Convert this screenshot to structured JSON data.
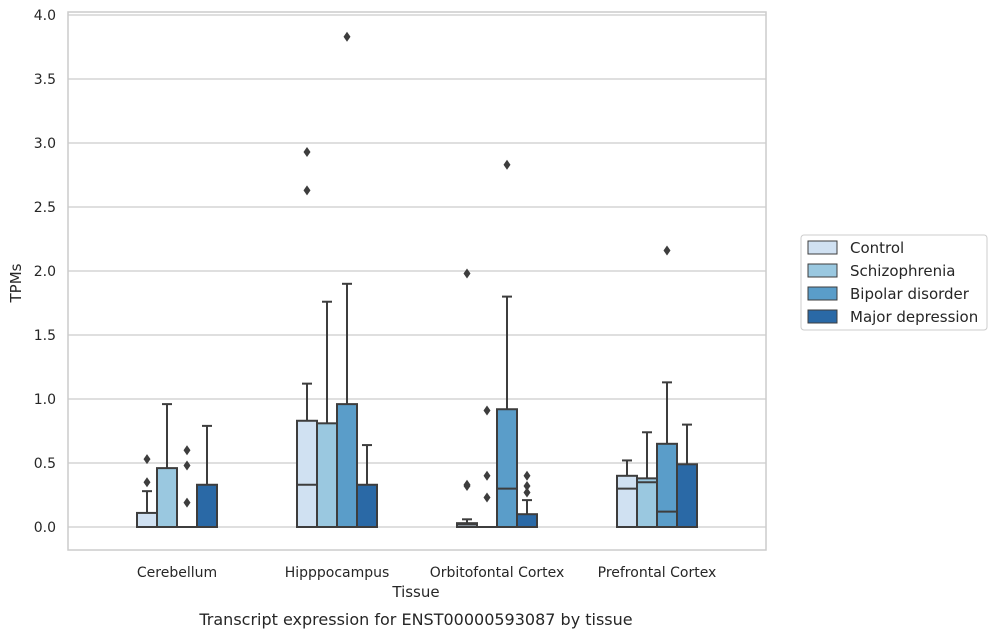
{
  "chart_data": {
    "type": "boxplot",
    "xlabel": "Tissue",
    "ylabel": "TPMs",
    "caption": "Transcript expression for ENST00000593087 by tissue",
    "ylim": [
      -0.18,
      4.03
    ],
    "yticks": [
      "0.0",
      "0.5",
      "1.0",
      "1.5",
      "2.0",
      "2.5",
      "3.0",
      "3.5",
      "4.0"
    ],
    "grid": "horizontal",
    "legend_position": "right",
    "categories": [
      "Cerebellum",
      "Hipppocampus",
      "Orbitofontal Cortex",
      "Prefrontal Cortex"
    ],
    "series": [
      {
        "name": "Control",
        "color": "#d0e1f2",
        "boxes": [
          {
            "whisker_low": 0.0,
            "q1": 0.0,
            "median": 0.0,
            "q3": 0.11,
            "whisker_high": 0.28,
            "outliers": [
              0.35,
              0.53
            ]
          },
          {
            "whisker_low": 0.0,
            "q1": 0.0,
            "median": 0.33,
            "q3": 0.83,
            "whisker_high": 1.12,
            "outliers": [
              2.63,
              2.93
            ]
          },
          {
            "whisker_low": 0.0,
            "q1": 0.0,
            "median": 0.02,
            "q3": 0.03,
            "whisker_high": 0.06,
            "outliers": [
              0.32,
              0.33,
              1.98
            ]
          },
          {
            "whisker_low": 0.0,
            "q1": 0.0,
            "median": 0.3,
            "q3": 0.4,
            "whisker_high": 0.52,
            "outliers": []
          }
        ]
      },
      {
        "name": "Schizophrenia",
        "color": "#9ac8e0",
        "boxes": [
          {
            "whisker_low": 0.0,
            "q1": 0.0,
            "median": 0.0,
            "q3": 0.46,
            "whisker_high": 0.96,
            "outliers": []
          },
          {
            "whisker_low": 0.0,
            "q1": 0.0,
            "median": 0.0,
            "q3": 0.81,
            "whisker_high": 1.76,
            "outliers": []
          },
          {
            "whisker_low": 0.0,
            "q1": 0.0,
            "median": 0.0,
            "q3": 0.0,
            "whisker_high": 0.0,
            "outliers": [
              0.23,
              0.4,
              0.91
            ]
          },
          {
            "whisker_low": 0.0,
            "q1": 0.0,
            "median": 0.35,
            "q3": 0.38,
            "whisker_high": 0.74,
            "outliers": []
          }
        ]
      },
      {
        "name": "Bipolar disorder",
        "color": "#5a9dc9",
        "boxes": [
          {
            "whisker_low": 0.0,
            "q1": 0.0,
            "median": 0.0,
            "q3": 0.0,
            "whisker_high": 0.0,
            "outliers": [
              0.19,
              0.48,
              0.6
            ]
          },
          {
            "whisker_low": 0.0,
            "q1": 0.0,
            "median": 0.0,
            "q3": 0.96,
            "whisker_high": 1.9,
            "outliers": [
              3.83
            ]
          },
          {
            "whisker_low": 0.0,
            "q1": 0.0,
            "median": 0.3,
            "q3": 0.92,
            "whisker_high": 1.8,
            "outliers": [
              2.83
            ]
          },
          {
            "whisker_low": 0.0,
            "q1": 0.0,
            "median": 0.12,
            "q3": 0.65,
            "whisker_high": 1.13,
            "outliers": [
              2.16
            ]
          }
        ]
      },
      {
        "name": "Major depression",
        "color": "#2a69a6",
        "boxes": [
          {
            "whisker_low": 0.0,
            "q1": 0.0,
            "median": 0.0,
            "q3": 0.33,
            "whisker_high": 0.79,
            "outliers": []
          },
          {
            "whisker_low": 0.0,
            "q1": 0.0,
            "median": 0.0,
            "q3": 0.33,
            "whisker_high": 0.64,
            "outliers": []
          },
          {
            "whisker_low": 0.0,
            "q1": 0.0,
            "median": 0.0,
            "q3": 0.1,
            "whisker_high": 0.21,
            "outliers": [
              0.27,
              0.32,
              0.4
            ]
          },
          {
            "whisker_low": 0.0,
            "q1": 0.0,
            "median": 0.0,
            "q3": 0.49,
            "whisker_high": 0.8,
            "outliers": []
          }
        ]
      }
    ]
  }
}
